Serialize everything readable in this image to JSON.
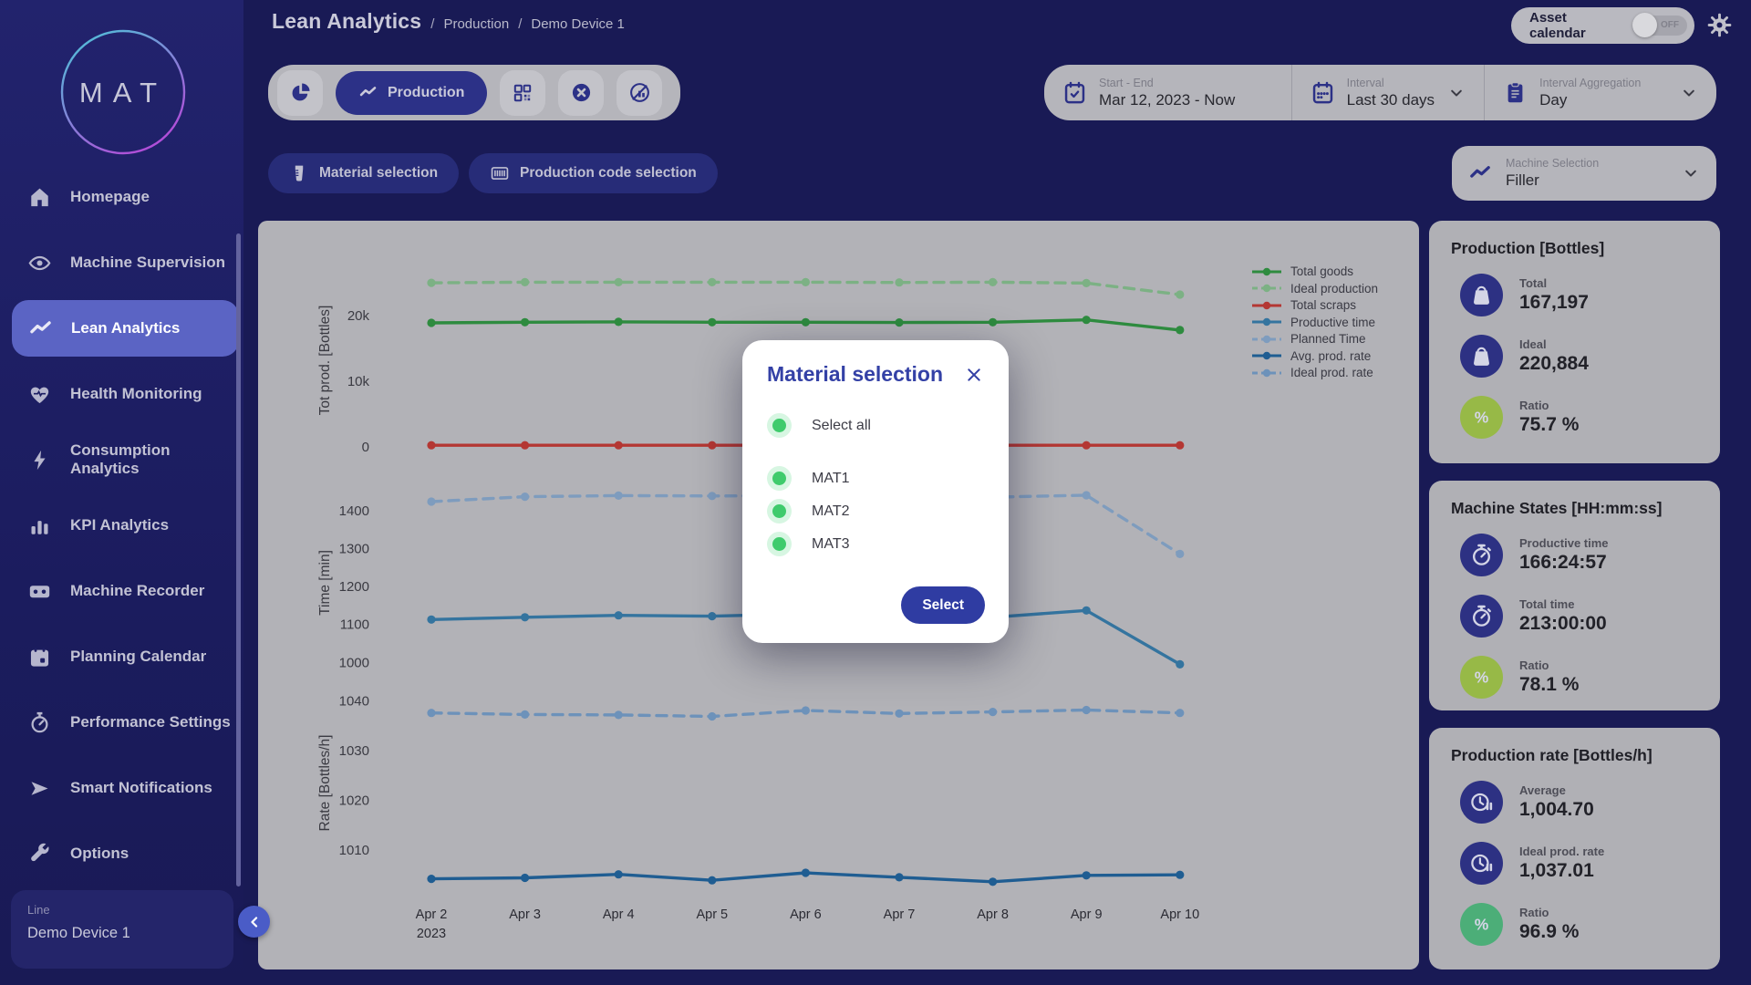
{
  "logo": {
    "text": "MAT"
  },
  "header": {
    "title": "Lean Analytics",
    "separator": "/",
    "breadcrumb": [
      "Production",
      "Demo Device 1"
    ],
    "asset_calendar": {
      "label": "Asset calendar",
      "state": "OFF"
    }
  },
  "sidebar": {
    "items": [
      {
        "label": "Homepage",
        "icon": "home"
      },
      {
        "label": "Machine Supervision",
        "icon": "eye"
      },
      {
        "label": "Lean Analytics",
        "icon": "trend"
      },
      {
        "label": "Health Monitoring",
        "icon": "heart"
      },
      {
        "label": "Consumption Analytics",
        "icon": "bolt"
      },
      {
        "label": "KPI Analytics",
        "icon": "bars"
      },
      {
        "label": "Machine Recorder",
        "icon": "cassette"
      },
      {
        "label": "Planning Calendar",
        "icon": "calendar"
      },
      {
        "label": "Performance Settings",
        "icon": "gauge"
      },
      {
        "label": "Smart Notifications",
        "icon": "send"
      },
      {
        "label": "Options",
        "icon": "wrench"
      }
    ],
    "active_item": "Lean Analytics",
    "line_selector": {
      "label": "Line",
      "value": "Demo Device 1"
    }
  },
  "toolbar": {
    "view_label": "Production",
    "start_end": {
      "label": "Start - End",
      "value": "Mar 12, 2023 - Now"
    },
    "interval": {
      "label": "Interval",
      "value": "Last 30 days"
    },
    "aggregation": {
      "label": "Interval Aggregation",
      "value": "Day"
    }
  },
  "filters": {
    "material_label": "Material selection",
    "production_code_label": "Production code selection",
    "machine_selection": {
      "label": "Machine Selection",
      "value": "Filler"
    }
  },
  "modal": {
    "title": "Material selection",
    "options": [
      "Select all",
      "MAT1",
      "MAT2",
      "MAT3"
    ],
    "submit_label": "Select"
  },
  "stats": {
    "cards": [
      {
        "title": "Production [Bottles]",
        "rows": [
          {
            "icon": "weight",
            "label": "Total",
            "value": "167,197",
            "circle_color": "#2d3183"
          },
          {
            "icon": "weight",
            "label": "Ideal",
            "value": "220,884",
            "circle_color": "#2d3183"
          },
          {
            "icon": "percent",
            "label": "Ratio",
            "value": "75.7 %",
            "circle_color": "#97b947"
          }
        ]
      },
      {
        "title": "Machine States [HH:mm:ss]",
        "rows": [
          {
            "icon": "stopwatch",
            "label": "Productive time",
            "value": "166:24:57",
            "circle_color": "#2d3183"
          },
          {
            "icon": "stopwatch",
            "label": "Total time",
            "value": "213:00:00",
            "circle_color": "#2d3183"
          },
          {
            "icon": "percent",
            "label": "Ratio",
            "value": "78.1 %",
            "circle_color": "#97b947"
          }
        ]
      },
      {
        "title": "Production rate [Bottles/h]",
        "rows": [
          {
            "icon": "clock-pause",
            "label": "Average",
            "value": "1,004.70",
            "circle_color": "#2d3183"
          },
          {
            "icon": "clock-pause",
            "label": "Ideal prod. rate",
            "value": "1,037.01",
            "circle_color": "#2d3183"
          },
          {
            "icon": "percent",
            "label": "Ratio",
            "value": "96.9 %",
            "circle_color": "#4cae78"
          }
        ]
      }
    ]
  },
  "chart_data": {
    "type": "line",
    "categories": [
      "Apr 2",
      "Apr 3",
      "Apr 4",
      "Apr 5",
      "Apr 6",
      "Apr 7",
      "Apr 8",
      "Apr 9",
      "Apr 10"
    ],
    "x_first_sublabel": "2023",
    "grid": false,
    "legend_position": "right-top",
    "subplots": [
      {
        "ylabel": "Tot prod. [Bottles]",
        "ylim": [
          0,
          26400
        ],
        "yticks": [
          {
            "v": 0,
            "label": "0"
          },
          {
            "v": 10000,
            "label": "10k"
          },
          {
            "v": 20000,
            "label": "20k"
          }
        ],
        "series": [
          {
            "name": "Total goods",
            "color": "#2e8b3f",
            "dashed": false,
            "values": [
              18900,
              19000,
              19050,
              19000,
              19000,
              18950,
              19000,
              19350,
              17800
            ]
          },
          {
            "name": "Ideal production",
            "color": "#7cb184",
            "dashed": true,
            "values": [
              25000,
              25100,
              25100,
              25100,
              25100,
              25050,
              25100,
              24950,
              23200
            ]
          },
          {
            "name": "Total scraps",
            "color": "#b43733",
            "dashed": false,
            "values": [
              250,
              250,
              250,
              250,
              250,
              250,
              250,
              250,
              250
            ]
          }
        ]
      },
      {
        "ylabel": "Time [min]",
        "ylim": [
          955,
          1465
        ],
        "yticks": [
          {
            "v": 1000,
            "label": "1000"
          },
          {
            "v": 1100,
            "label": "1100"
          },
          {
            "v": 1200,
            "label": "1200"
          },
          {
            "v": 1300,
            "label": "1300"
          },
          {
            "v": 1400,
            "label": "1400"
          }
        ],
        "series": [
          {
            "name": "Productive time",
            "color": "#34749f",
            "dashed": false,
            "values": [
              1113,
              1119,
              1124,
              1122,
              1128,
              1124,
              1119,
              1137,
              995
            ]
          },
          {
            "name": "Planned Time",
            "color": "#7e9cbe",
            "dashed": true,
            "values": [
              1424,
              1437,
              1440,
              1439,
              1440,
              1439,
              1436,
              1441,
              1286
            ]
          }
        ]
      },
      {
        "ylabel": "Rate [Bottles/h]",
        "ylim": [
          1001,
          1046
        ],
        "yticks": [
          {
            "v": 1010,
            "label": "1010"
          },
          {
            "v": 1020,
            "label": "1020"
          },
          {
            "v": 1030,
            "label": "1030"
          },
          {
            "v": 1040,
            "label": "1040"
          }
        ],
        "series": [
          {
            "name": "Avg. prod. rate",
            "color": "#1f5d92",
            "dashed": false,
            "values": [
              1004.2,
              1004.4,
              1005.1,
              1003.9,
              1005.4,
              1004.5,
              1003.6,
              1004.9,
              1005.0
            ]
          },
          {
            "name": "Ideal prod. rate",
            "color": "#6d92ba",
            "dashed": true,
            "values": [
              1037.6,
              1037.3,
              1037.2,
              1036.9,
              1038.1,
              1037.5,
              1037.8,
              1038.2,
              1037.6
            ]
          }
        ]
      }
    ]
  },
  "colors": {
    "page": "#191a55",
    "sidebar": "#1e1f63",
    "panel": "#b2b2b7",
    "panel2": "#b5b5bb",
    "card": "#b0b0b5",
    "accent_navy": "#2c3187",
    "filter_pill": "#272c78",
    "active_item": "#5b64c4",
    "modal_accent": "#3441a6",
    "select_button": "#2f3ca2",
    "radio_green": "#3fcb6c",
    "radio_bg": "#d7f6e2",
    "ratio_olive": "#97b947",
    "ratio_green": "#4cae78",
    "collapse_button": "#4a5cc7"
  }
}
